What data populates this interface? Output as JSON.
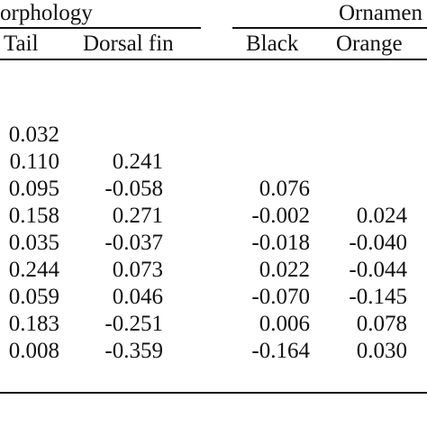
{
  "headers": {
    "group_left": "orphology",
    "group_right": "Ornamen",
    "columns": [
      "Tail",
      "Dorsal fin",
      "Black",
      "Orange"
    ]
  },
  "rows": [
    [
      "",
      "",
      "",
      ""
    ],
    [
      "",
      "",
      "",
      ""
    ],
    [
      "0.032",
      "",
      "",
      ""
    ],
    [
      "0.110",
      "0.241",
      "",
      ""
    ],
    [
      "0.095",
      "-0.058",
      "0.076",
      ""
    ],
    [
      "0.158",
      "0.271",
      "-0.002",
      "0.024"
    ],
    [
      "0.035",
      "-0.037",
      "-0.018",
      "-0.040"
    ],
    [
      "0.244",
      "0.073",
      "0.022",
      "-0.044"
    ],
    [
      "0.059",
      "0.046",
      "-0.070",
      "-0.145"
    ],
    [
      "0.183",
      "-0.251",
      "0.006",
      "0.078"
    ],
    [
      "0.008",
      "-0.359",
      "-0.164",
      "0.030"
    ]
  ]
}
